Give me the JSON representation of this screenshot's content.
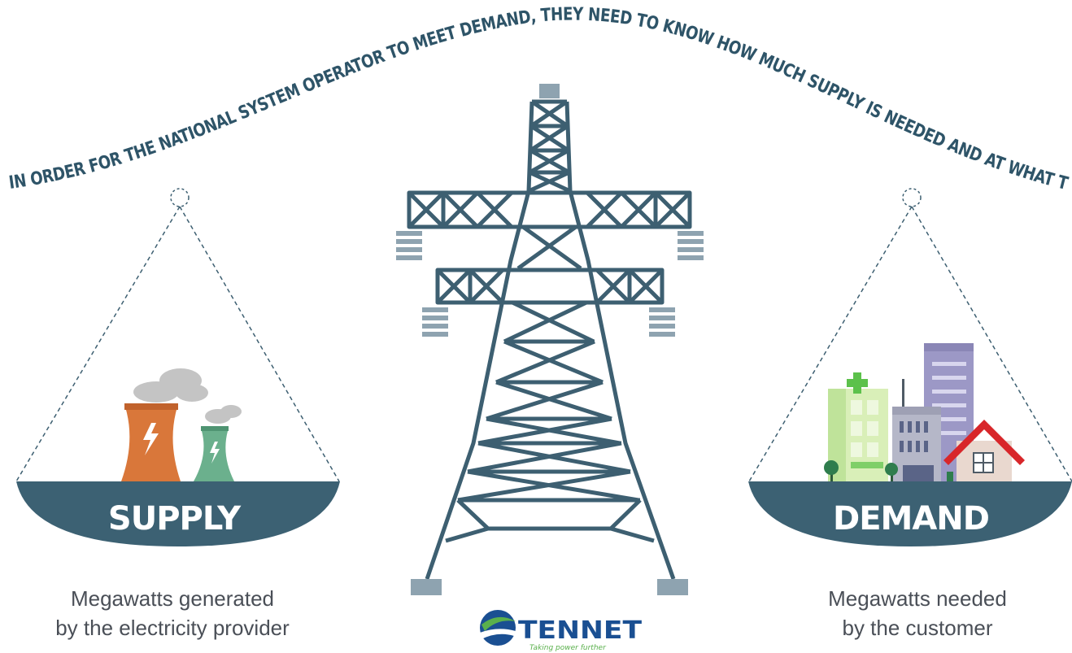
{
  "headline": "IN ORDER FOR THE NATIONAL SYSTEM OPERATOR TO MEET DEMAND, THEY NEED TO KNOW HOW MUCH SUPPLY IS NEEDED AND AT WHAT TIMES",
  "supply": {
    "label": "SUPPLY",
    "caption_line1": "Megawatts generated",
    "caption_line2": "by the electricity provider"
  },
  "demand": {
    "label": "DEMAND",
    "caption_line1": "Megawatts needed",
    "caption_line2": "by the customer"
  },
  "logo": {
    "name": "TENNET",
    "tagline": "Taking power further"
  },
  "colors": {
    "tower": "#3d5f71",
    "pan": "#3c6173",
    "cooling_tower_large": "#d9773a",
    "cooling_tower_small": "#6bb08d",
    "house_roof": "#d8262a"
  },
  "icons": [
    "power-tower-icon",
    "cooling-tower-icon",
    "lightning-bolt-icon",
    "smoke-cloud-icon",
    "city-buildings-icon",
    "hospital-building-icon",
    "house-icon",
    "tree-icon",
    "tennet-logo-icon"
  ]
}
